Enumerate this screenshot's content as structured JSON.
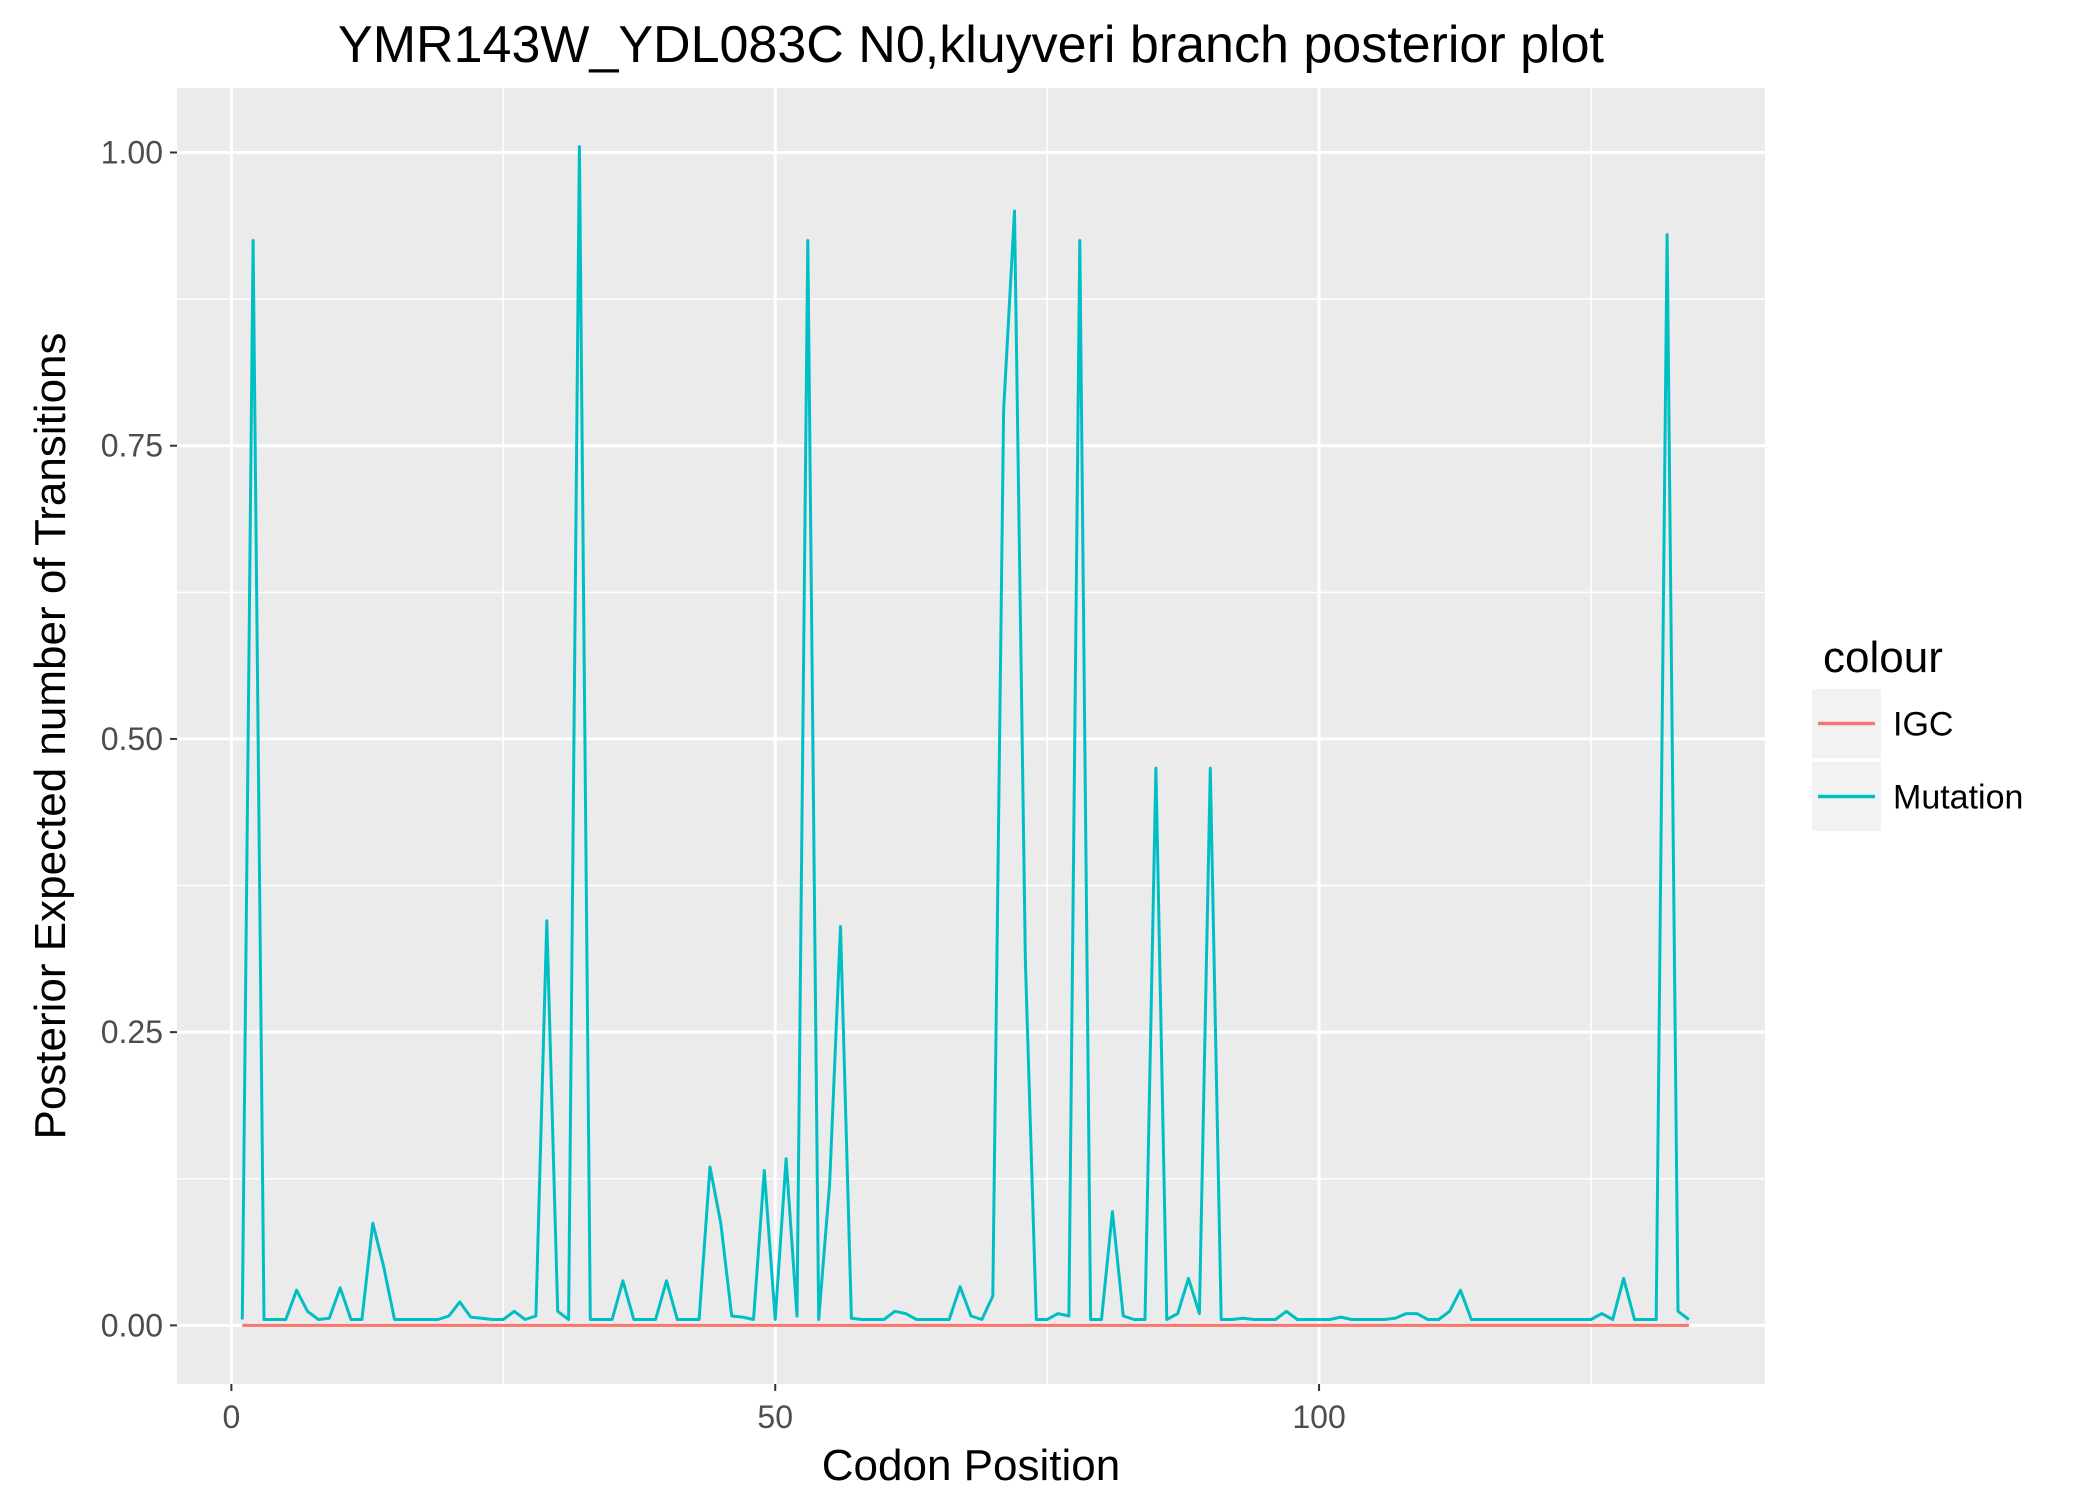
{
  "chart_data": {
    "type": "line",
    "title": "YMR143W_YDL083C N0,kluyveri branch posterior plot",
    "xlabel": "Codon Position",
    "ylabel": "Posterior Expected number of Transitions",
    "xlim": [
      -5,
      141
    ],
    "ylim": [
      -0.05,
      1.055
    ],
    "x_ticks": [
      0,
      50,
      100
    ],
    "x_tick_labels": [
      "0",
      "50",
      "100"
    ],
    "y_ticks": [
      0,
      0.25,
      0.5,
      0.75,
      1.0
    ],
    "y_tick_labels": [
      "0.00",
      "0.25",
      "0.50",
      "0.75",
      "1.00"
    ],
    "grid": true,
    "legend": {
      "title": "colour",
      "position": "right"
    },
    "series": [
      {
        "name": "IGC",
        "color": "#F8766D",
        "x": [
          1,
          134
        ],
        "y": [
          0,
          0
        ]
      },
      {
        "name": "Mutation",
        "color": "#00BFC4",
        "x": [
          1,
          2,
          3,
          4,
          5,
          6,
          7,
          8,
          9,
          10,
          11,
          12,
          13,
          14,
          15,
          16,
          17,
          18,
          19,
          20,
          21,
          22,
          23,
          24,
          25,
          26,
          27,
          28,
          29,
          30,
          31,
          32,
          33,
          34,
          35,
          36,
          37,
          38,
          39,
          40,
          41,
          42,
          43,
          44,
          45,
          46,
          47,
          48,
          49,
          50,
          51,
          52,
          53,
          54,
          55,
          56,
          57,
          58,
          59,
          60,
          61,
          62,
          63,
          64,
          65,
          66,
          67,
          68,
          69,
          70,
          71,
          72,
          73,
          74,
          75,
          76,
          77,
          78,
          79,
          80,
          81,
          82,
          83,
          84,
          85,
          86,
          87,
          88,
          89,
          90,
          91,
          92,
          93,
          94,
          95,
          96,
          97,
          98,
          99,
          100,
          101,
          102,
          103,
          104,
          105,
          106,
          107,
          108,
          109,
          110,
          111,
          112,
          113,
          114,
          115,
          116,
          117,
          118,
          119,
          120,
          121,
          122,
          123,
          124,
          125,
          126,
          127,
          128,
          129,
          130,
          131,
          132,
          133,
          134
        ],
        "y": [
          0.005,
          0.925,
          0.005,
          0.005,
          0.005,
          0.03,
          0.012,
          0.005,
          0.006,
          0.032,
          0.005,
          0.005,
          0.087,
          0.05,
          0.005,
          0.005,
          0.005,
          0.005,
          0.005,
          0.008,
          0.02,
          0.007,
          0.006,
          0.005,
          0.005,
          0.012,
          0.005,
          0.008,
          0.345,
          0.012,
          0.005,
          1.005,
          0.005,
          0.005,
          0.005,
          0.038,
          0.005,
          0.005,
          0.005,
          0.038,
          0.005,
          0.005,
          0.005,
          0.135,
          0.087,
          0.008,
          0.007,
          0.005,
          0.132,
          0.005,
          0.142,
          0.008,
          0.925,
          0.005,
          0.12,
          0.34,
          0.006,
          0.005,
          0.005,
          0.005,
          0.012,
          0.01,
          0.005,
          0.005,
          0.005,
          0.005,
          0.033,
          0.008,
          0.005,
          0.025,
          0.78,
          0.95,
          0.31,
          0.005,
          0.005,
          0.01,
          0.008,
          0.925,
          0.005,
          0.005,
          0.097,
          0.008,
          0.005,
          0.005,
          0.475,
          0.005,
          0.01,
          0.04,
          0.01,
          0.475,
          0.005,
          0.005,
          0.006,
          0.005,
          0.005,
          0.005,
          0.012,
          0.005,
          0.005,
          0.005,
          0.005,
          0.007,
          0.005,
          0.005,
          0.005,
          0.005,
          0.006,
          0.01,
          0.01,
          0.005,
          0.005,
          0.012,
          0.03,
          0.005,
          0.005,
          0.005,
          0.005,
          0.005,
          0.005,
          0.005,
          0.005,
          0.005,
          0.005,
          0.005,
          0.005,
          0.01,
          0.005,
          0.04,
          0.005,
          0.005,
          0.005,
          0.93,
          0.012,
          0.005
        ]
      }
    ]
  }
}
